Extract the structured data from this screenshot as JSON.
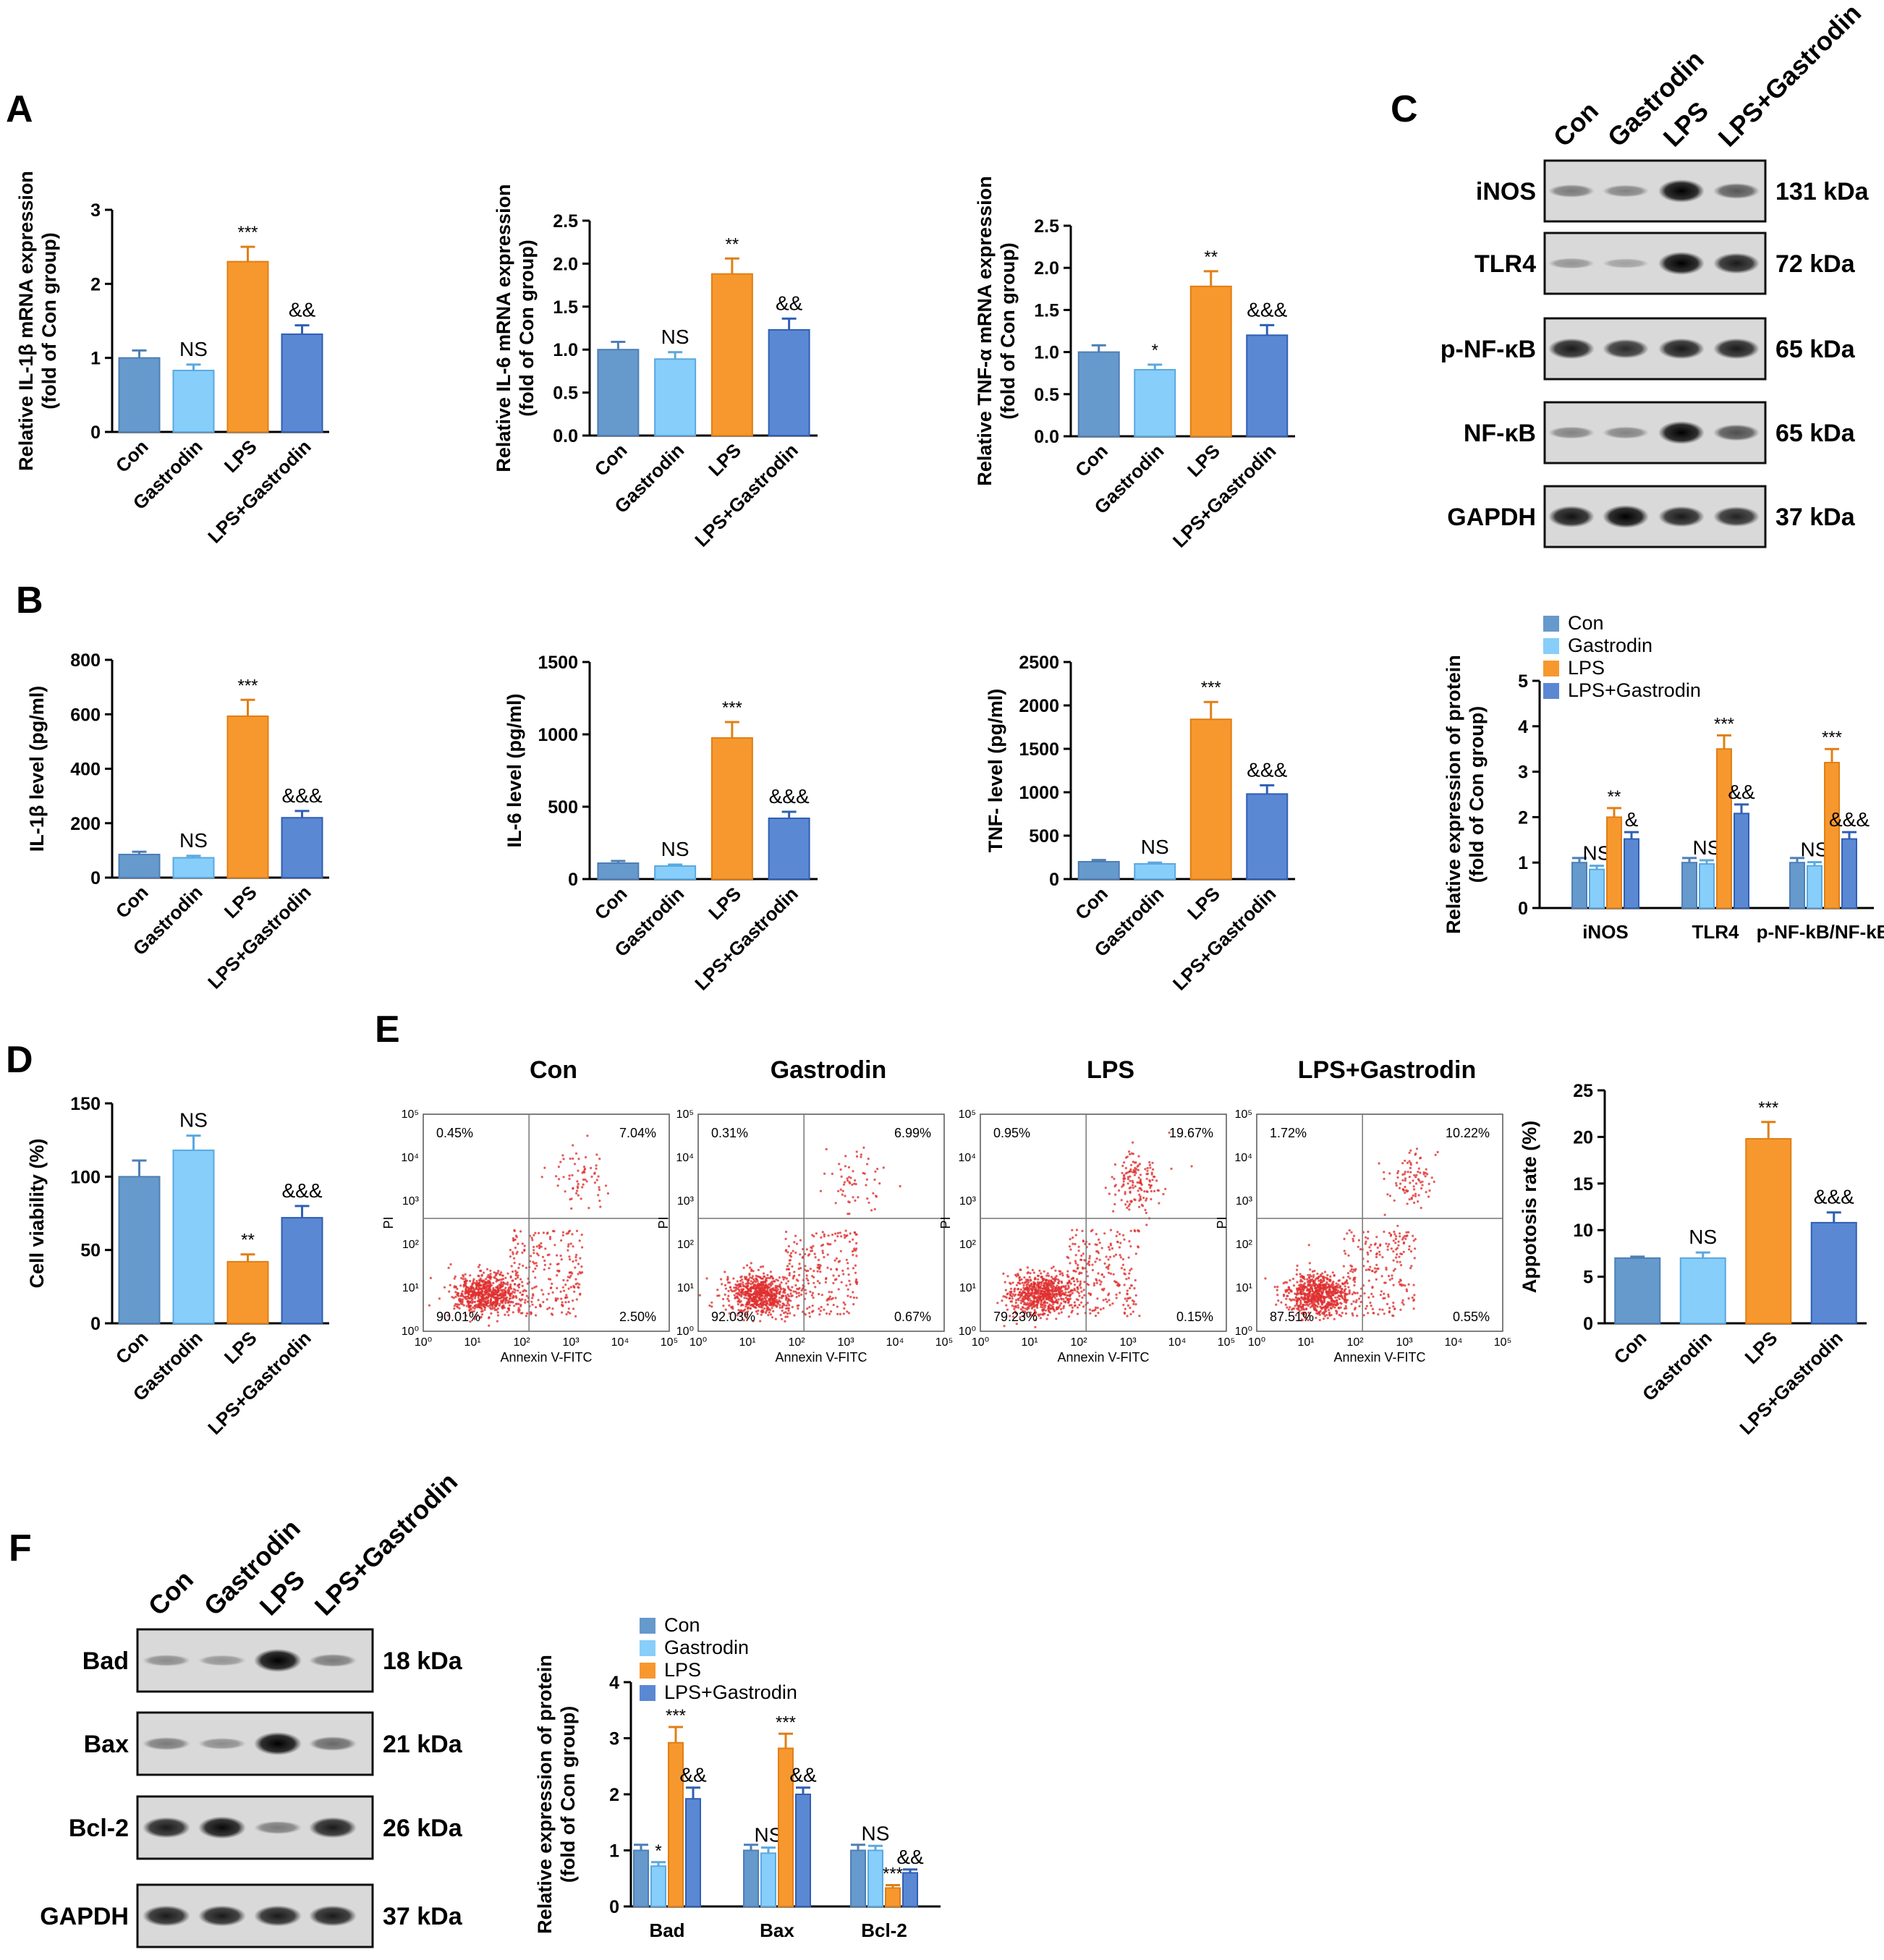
{
  "colors": {
    "Con": "#6699CC",
    "Gastrodin": "#87CEFA",
    "LPS": "#F7982E",
    "LPS+Gastrodin": "#5B88D2",
    "dot": "#E03030"
  },
  "panels": {
    "A": "A",
    "B": "B",
    "C": "C",
    "D": "D",
    "E": "E",
    "F": "F"
  },
  "groups": [
    "Con",
    "Gastrodin",
    "LPS",
    "LPS+Gastrodin"
  ],
  "chart_data": [
    {
      "id": "A1",
      "type": "bar",
      "categories": [
        "Con",
        "Gastrodin",
        "LPS",
        "LPS+Gastrodin"
      ],
      "values": [
        1.0,
        0.83,
        2.3,
        1.32
      ],
      "errors": [
        0.1,
        0.08,
        0.2,
        0.12
      ],
      "significance": [
        "",
        "NS",
        "***",
        "&&"
      ],
      "ylabel_lines": [
        "Relative IL-1β mRNA expression",
        "(fold of Con group)"
      ],
      "ylim": [
        0,
        3
      ],
      "yticks": [
        "0",
        "1",
        "2",
        "3"
      ]
    },
    {
      "id": "A2",
      "type": "bar",
      "categories": [
        "Con",
        "Gastrodin",
        "LPS",
        "LPS+Gastrodin"
      ],
      "values": [
        1.0,
        0.89,
        1.88,
        1.23
      ],
      "errors": [
        0.09,
        0.08,
        0.18,
        0.13
      ],
      "significance": [
        "",
        "NS",
        "**",
        "&&"
      ],
      "ylabel_lines": [
        "Relative IL-6 mRNA expression",
        "(fold of Con group)"
      ],
      "ylim": [
        0,
        2.5
      ],
      "yticks": [
        "0.0",
        "0.5",
        "1.0",
        "1.5",
        "2.0",
        "2.5"
      ]
    },
    {
      "id": "A3",
      "type": "bar",
      "categories": [
        "Con",
        "Gastrodin",
        "LPS",
        "LPS+Gastrodin"
      ],
      "values": [
        1.0,
        0.79,
        1.78,
        1.2
      ],
      "errors": [
        0.08,
        0.06,
        0.18,
        0.12
      ],
      "significance": [
        "",
        "*",
        "**",
        "&&&"
      ],
      "ylabel_lines": [
        "Relative TNF-α mRNA expression",
        "(fold of Con group)"
      ],
      "ylim": [
        0,
        2.5
      ],
      "yticks": [
        "0.0",
        "0.5",
        "1.0",
        "1.5",
        "2.0",
        "2.5"
      ]
    },
    {
      "id": "B1",
      "type": "bar",
      "categories": [
        "Con",
        "Gastrodin",
        "LPS",
        "LPS+Gastrodin"
      ],
      "values": [
        85,
        73,
        593,
        220
      ],
      "errors": [
        10,
        7,
        60,
        25
      ],
      "significance": [
        "",
        "NS",
        "***",
        "&&&"
      ],
      "ylabel_lines": [
        "IL-1β level (pg/ml)"
      ],
      "ylim": [
        0,
        800
      ],
      "yticks": [
        "0",
        "200",
        "400",
        "600",
        "800"
      ]
    },
    {
      "id": "B2",
      "type": "bar",
      "categories": [
        "Con",
        "Gastrodin",
        "LPS",
        "LPS+Gastrodin"
      ],
      "values": [
        110,
        90,
        975,
        420
      ],
      "errors": [
        15,
        10,
        110,
        45
      ],
      "significance": [
        "",
        "NS",
        "***",
        "&&&"
      ],
      "ylabel_lines": [
        "IL-6 level (pg/ml)"
      ],
      "ylim": [
        0,
        1500
      ],
      "yticks": [
        "0",
        "500",
        "1000",
        "1500"
      ]
    },
    {
      "id": "B3",
      "type": "bar",
      "categories": [
        "Con",
        "Gastrodin",
        "LPS",
        "LPS+Gastrodin"
      ],
      "values": [
        200,
        175,
        1840,
        980
      ],
      "errors": [
        20,
        15,
        200,
        100
      ],
      "significance": [
        "",
        "NS",
        "***",
        "&&&"
      ],
      "ylabel_lines": [
        "TNF- level (pg/ml)"
      ],
      "ylim": [
        0,
        2500
      ],
      "yticks": [
        "0",
        "500",
        "1000",
        "1500",
        "2000",
        "2500"
      ]
    },
    {
      "id": "C",
      "type": "bar",
      "categories": [
        "iNOS",
        "TLR4",
        "p-NF-kB/NF-kB"
      ],
      "series": [
        {
          "name": "Con",
          "values": [
            1.0,
            1.0,
            1.0
          ],
          "errors": [
            0.1,
            0.1,
            0.1
          ],
          "sig": [
            "",
            "",
            ""
          ]
        },
        {
          "name": "Gastrodin",
          "values": [
            0.85,
            0.97,
            0.93
          ],
          "errors": [
            0.08,
            0.08,
            0.08
          ],
          "sig": [
            "NS",
            "NS",
            "NS"
          ]
        },
        {
          "name": "LPS",
          "values": [
            2.0,
            3.5,
            3.2
          ],
          "errors": [
            0.2,
            0.3,
            0.3
          ],
          "sig": [
            "**",
            "***",
            "***"
          ]
        },
        {
          "name": "LPS+Gastrodin",
          "values": [
            1.52,
            2.08,
            1.52
          ],
          "errors": [
            0.15,
            0.2,
            0.15
          ],
          "sig": [
            "&",
            "&&",
            "&&&"
          ]
        }
      ],
      "ylabel_lines": [
        "Relative expression of protein",
        "(fold of Con group)"
      ],
      "ylim": [
        0,
        5
      ],
      "yticks": [
        "0",
        "1",
        "2",
        "3",
        "4",
        "5"
      ],
      "legend": "top-left"
    },
    {
      "id": "D",
      "type": "bar",
      "categories": [
        "Con",
        "Gastrodin",
        "LPS",
        "LPS+Gastrodin"
      ],
      "values": [
        100,
        118,
        42,
        72
      ],
      "errors": [
        11,
        10,
        5,
        8
      ],
      "significance": [
        "",
        "NS",
        "**",
        "&&&"
      ],
      "ylabel_lines": [
        "Cell viability (%)"
      ],
      "ylim": [
        0,
        150
      ],
      "yticks": [
        "0",
        "50",
        "100",
        "150"
      ]
    },
    {
      "id": "E",
      "type": "bar",
      "categories": [
        "Con",
        "Gastrodin",
        "LPS",
        "LPS+Gastrodin"
      ],
      "values": [
        7.0,
        7.0,
        19.8,
        10.8
      ],
      "errors": [
        0.15,
        0.6,
        1.8,
        1.1
      ],
      "significance": [
        "",
        "NS",
        "***",
        "&&&"
      ],
      "ylabel_lines": [
        "Appotosis rate (%)"
      ],
      "ylim": [
        0,
        25
      ],
      "yticks": [
        "0",
        "5",
        "10",
        "15",
        "20",
        "25"
      ]
    },
    {
      "id": "F",
      "type": "bar",
      "categories": [
        "Bad",
        "Bax",
        "Bcl-2"
      ],
      "series": [
        {
          "name": "Con",
          "values": [
            1.0,
            1.0,
            1.0
          ],
          "errors": [
            0.1,
            0.1,
            0.1
          ],
          "sig": [
            "",
            "",
            ""
          ]
        },
        {
          "name": "Gastrodin",
          "values": [
            0.72,
            0.95,
            1.0
          ],
          "errors": [
            0.07,
            0.1,
            0.08
          ],
          "sig": [
            "*",
            "NS",
            "NS"
          ]
        },
        {
          "name": "LPS",
          "values": [
            2.92,
            2.82,
            0.33
          ],
          "errors": [
            0.28,
            0.26,
            0.05
          ],
          "sig": [
            "***",
            "***",
            "***"
          ]
        },
        {
          "name": "LPS+Gastrodin",
          "values": [
            1.92,
            2.0,
            0.6
          ],
          "errors": [
            0.2,
            0.12,
            0.06
          ],
          "sig": [
            "&&",
            "&&",
            "&&"
          ]
        }
      ],
      "ylabel_lines": [
        "Relative expression of protein",
        "(fold of Con group)"
      ],
      "ylim": [
        0,
        4
      ],
      "yticks": [
        "0",
        "1",
        "2",
        "3",
        "4"
      ],
      "legend": "top-left"
    }
  ],
  "western_C": {
    "lanes": [
      "Con",
      "Gastrodin",
      "LPS",
      "LPS+Gastrodin"
    ],
    "bands": [
      {
        "name": "iNOS",
        "kda": "131 kDa",
        "intensity": [
          0.3,
          0.25,
          1.0,
          0.5
        ]
      },
      {
        "name": "TLR4",
        "kda": "72 kDa",
        "intensity": [
          0.15,
          0.08,
          1.0,
          0.85
        ]
      },
      {
        "name": "p-NF-κB",
        "kda": "65 kDa",
        "intensity": [
          0.85,
          0.75,
          0.85,
          0.85
        ]
      },
      {
        "name": "NF-κB",
        "kda": "65 kDa",
        "intensity": [
          0.25,
          0.25,
          1.0,
          0.55
        ]
      },
      {
        "name": "GAPDH",
        "kda": "37 kDa",
        "intensity": [
          0.9,
          1.0,
          0.85,
          0.8
        ]
      }
    ]
  },
  "western_F": {
    "lanes": [
      "Con",
      "Gastrodin",
      "LPS",
      "LPS+Gastrodin"
    ],
    "bands": [
      {
        "name": "Bad",
        "kda": "18 kDa",
        "intensity": [
          0.2,
          0.15,
          1.0,
          0.3
        ]
      },
      {
        "name": "Bax",
        "kda": "21 kDa",
        "intensity": [
          0.3,
          0.2,
          1.0,
          0.4
        ]
      },
      {
        "name": "Bcl-2",
        "kda": "26 kDa",
        "intensity": [
          0.85,
          0.95,
          0.3,
          0.85
        ]
      },
      {
        "name": "GAPDH",
        "kda": "37 kDa",
        "intensity": [
          0.85,
          0.85,
          0.85,
          0.85
        ]
      }
    ]
  },
  "flow_E": {
    "plots": [
      {
        "title": "Con",
        "q": [
          "0.45%",
          "7.04%",
          "90.01%",
          "2.50%"
        ]
      },
      {
        "title": "Gastrodin",
        "q": [
          "0.31%",
          "6.99%",
          "92.03%",
          "0.67%"
        ]
      },
      {
        "title": "LPS",
        "q": [
          "0.95%",
          "19.67%",
          "79.23%",
          "0.15%"
        ]
      },
      {
        "title": "LPS+Gastrodin",
        "q": [
          "1.72%",
          "10.22%",
          "87.51%",
          "0.55%"
        ]
      }
    ],
    "xlabel": "Annexin V-FITC",
    "ylabel": "PI",
    "ticks": [
      "10⁰",
      "10¹",
      "10²",
      "10³",
      "10⁴",
      "10⁵"
    ]
  }
}
